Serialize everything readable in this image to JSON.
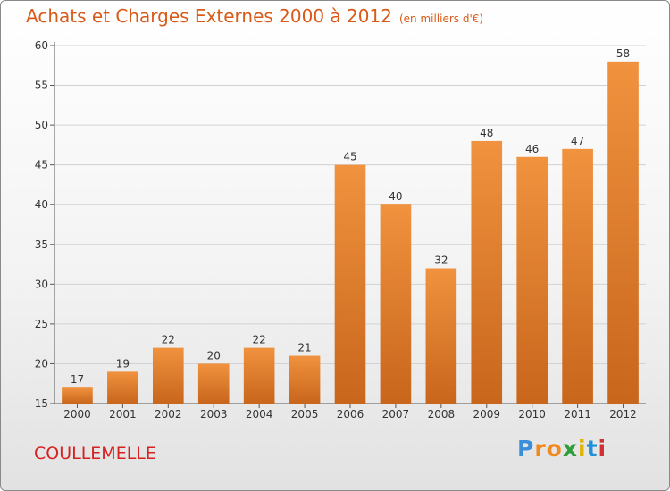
{
  "chart_data": {
    "type": "bar",
    "title": "Achats et Charges Externes 2000 à 2012",
    "subtitle": "(en milliers d'€)",
    "categories": [
      "2000",
      "2001",
      "2002",
      "2003",
      "2004",
      "2005",
      "2006",
      "2007",
      "2008",
      "2009",
      "2010",
      "2011",
      "2012"
    ],
    "values": [
      17,
      19,
      22,
      20,
      22,
      21,
      45,
      40,
      32,
      48,
      46,
      47,
      58
    ],
    "ylim": [
      15,
      60
    ],
    "yticks": [
      15,
      20,
      25,
      30,
      35,
      40,
      45,
      50,
      55,
      60
    ],
    "grid": true,
    "bar_color": "#f0923e",
    "bar_color_dark": "#c8661c"
  },
  "footer": {
    "commune": "COULLEMELLE",
    "brand_letters": [
      "P",
      "r",
      "o",
      "x",
      "i",
      "t",
      "i"
    ],
    "brand_colors": [
      "#3a8fd8",
      "#f08a1e",
      "#f08a1e",
      "#2e9e3a",
      "#e0b400",
      "#1e90d8",
      "#d03030"
    ]
  }
}
